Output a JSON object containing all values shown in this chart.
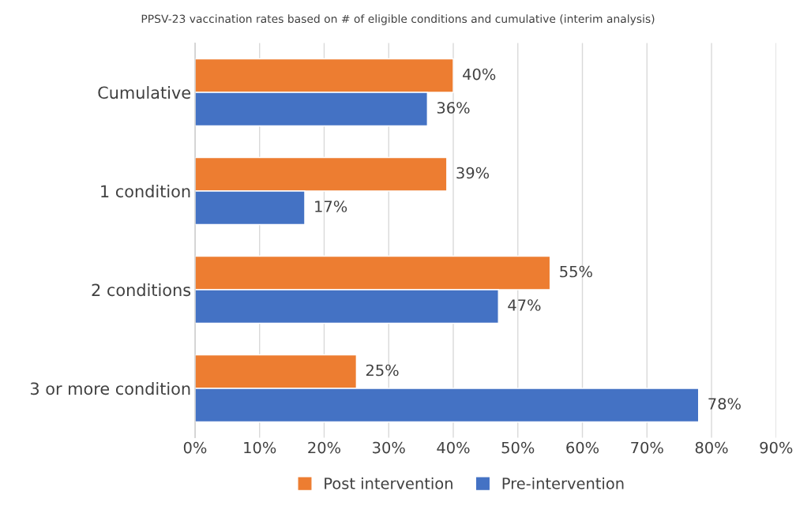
{
  "chart_data": {
    "type": "bar",
    "orientation": "horizontal",
    "title": "PPSV-23 vaccination rates based on # of eligible conditions and cumulative (interim analysis)",
    "categories": [
      "Cumulative",
      "1 condition",
      "2 conditions",
      "3 or more condition"
    ],
    "series": [
      {
        "name": "Post intervention",
        "color": "#ed7d31",
        "values": [
          40,
          39,
          55,
          25
        ],
        "value_labels": [
          "40%",
          "39%",
          "55%",
          "25%"
        ]
      },
      {
        "name": "Pre-intervention",
        "color": "#4472c4",
        "values": [
          36,
          17,
          47,
          78
        ],
        "value_labels": [
          "36%",
          "17%",
          "47%",
          "78%"
        ]
      }
    ],
    "xlim": [
      0,
      90
    ],
    "xticks": [
      {
        "value": 0,
        "label": "0%"
      },
      {
        "value": 10,
        "label": "10%"
      },
      {
        "value": 20,
        "label": "20%"
      },
      {
        "value": 30,
        "label": "30%"
      },
      {
        "value": 40,
        "label": "40%"
      },
      {
        "value": 50,
        "label": "50%"
      },
      {
        "value": 60,
        "label": "60%"
      },
      {
        "value": 70,
        "label": "70%"
      },
      {
        "value": 80,
        "label": "80%"
      },
      {
        "value": 90,
        "label": "90%"
      }
    ],
    "grid": "x",
    "legend": "bottom"
  }
}
